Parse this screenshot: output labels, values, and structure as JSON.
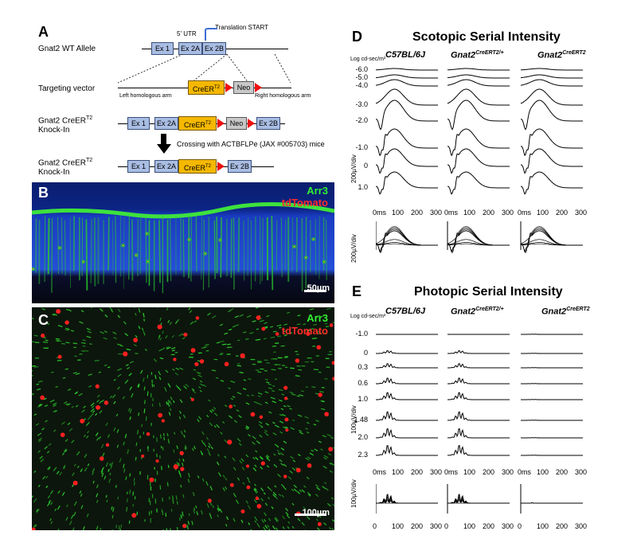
{
  "panelA": {
    "letter": "A",
    "rows": {
      "wt_allele": "Gnat2 WT Allele",
      "targeting_vector": "Targeting vector",
      "knockin1_line1": "Gnat2 CreER",
      "knockin1_line2": "Knock-In",
      "knockin2_line1": "Gnat2 CreER",
      "knockin2_line2": "Knock-In",
      "t2": "T2"
    },
    "utr": "5' UTR",
    "translation_start": "Translation START",
    "exons": {
      "ex1": "Ex 1",
      "ex2a": "Ex 2A",
      "ex2b": "Ex 2B"
    },
    "creer": "CreER",
    "neo": "Neo",
    "left_arm": "Left homologous arm",
    "right_arm": "Right homologous arm",
    "crossing": "Crossing with ACTBFLPe (JAX #005703) mice"
  },
  "panelB": {
    "letter": "B",
    "arr3": "Arr3",
    "tdtomato": "tdTomato",
    "scale": "50µm"
  },
  "panelC": {
    "letter": "C",
    "arr3": "Arr3",
    "tdtomato": "tdTomato",
    "scale": "100µm"
  },
  "panelD": {
    "letter": "D",
    "title": "Scotopic Serial Intensity",
    "unit": "Log cd-sec/m²",
    "strains": [
      "C57BL/6J",
      "Gnat2",
      "Gnat2"
    ],
    "strain_sup": [
      "",
      "CreERT2/+",
      "CreERT2"
    ],
    "intensities": [
      "-6.0",
      "-5.0",
      "-4.0",
      "-3.0",
      "-2.0",
      "-1.0",
      "0",
      "1.0"
    ],
    "yaxis": "200µV/div",
    "yaxis2": "200µV/div",
    "xticks": [
      "0ms",
      "100",
      "200",
      "300"
    ]
  },
  "panelE": {
    "letter": "E",
    "title": "Photopic Serial Intensity",
    "unit": "Log cd-sec/m²",
    "strains": [
      "C57BL/6J",
      "Gnat2",
      "Gnat2"
    ],
    "strain_sup": [
      "",
      "CreERT2/+",
      "CreERT2"
    ],
    "intensities": [
      "-1.0",
      "0",
      "0.3",
      "0.6",
      "1.0",
      "1.48",
      "2.0",
      "2.3"
    ],
    "yaxis": "100µV/div",
    "yaxis2": "100µV/div",
    "xticks": [
      "0ms",
      "100",
      "200",
      "300"
    ],
    "xticks2": [
      "0",
      "100",
      "200",
      "300"
    ]
  },
  "colors": {
    "exon": "#a9bde3",
    "creer": "#f5b800",
    "neo": "#c8c8c8",
    "frt": "#e11111",
    "arr3": "#22dd22",
    "tdtomato": "#ff2020"
  }
}
